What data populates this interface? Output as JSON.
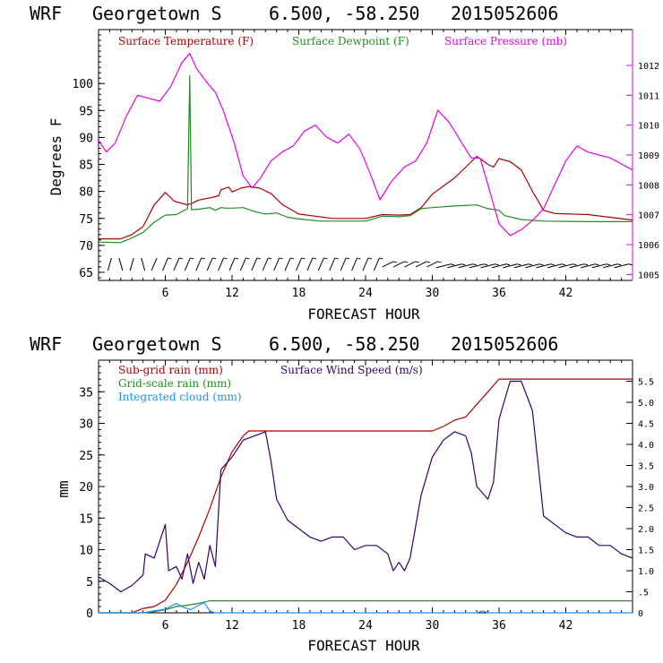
{
  "chart_data": [
    {
      "type": "line",
      "header": {
        "model": "WRF",
        "station": "Georgetown S",
        "coords": "6.500, -58.250",
        "run": "2015052606"
      },
      "xlabel": "FORECAST HOUR",
      "ylabel": "Degrees F",
      "xlim": [
        0,
        48
      ],
      "ylim": [
        63.5,
        110
      ],
      "y2lim": [
        1004.8,
        1013.2
      ],
      "xticks": [
        "6",
        "12",
        "18",
        "24",
        "30",
        "36",
        "42"
      ],
      "yticks": [
        "65",
        "70",
        "75",
        "80",
        "85",
        "90",
        "95",
        "100"
      ],
      "y2ticks": [
        "1005",
        "1006",
        "1007",
        "1008",
        "1009",
        "1010",
        "1011",
        "1012"
      ],
      "legend_placement": "top",
      "series": [
        {
          "name": "Surface Temperature (F)",
          "color": "#aa0000",
          "axis": "left",
          "points": [
            [
              0,
              71.2
            ],
            [
              2,
              71.2
            ],
            [
              3,
              72
            ],
            [
              4,
              73.5
            ],
            [
              5,
              77.5
            ],
            [
              6,
              79.8
            ],
            [
              6.8,
              78.2
            ],
            [
              7.5,
              77.8
            ],
            [
              8,
              77.5
            ],
            [
              8.4,
              77.8
            ],
            [
              9,
              78.4
            ],
            [
              10,
              78.8
            ],
            [
              10.8,
              79.2
            ],
            [
              11,
              80.3
            ],
            [
              11.7,
              80.8
            ],
            [
              12,
              79.9
            ],
            [
              12.8,
              80.6
            ],
            [
              13.5,
              80.9
            ],
            [
              14.5,
              80.6
            ],
            [
              15.5,
              79.6
            ],
            [
              16.5,
              77.6
            ],
            [
              18,
              75.8
            ],
            [
              21,
              75
            ],
            [
              24,
              75
            ],
            [
              25.5,
              75.7
            ],
            [
              27,
              75.6
            ],
            [
              28,
              75.7
            ],
            [
              29,
              77
            ],
            [
              30,
              79.5
            ],
            [
              31,
              81
            ],
            [
              32,
              82.5
            ],
            [
              33,
              84.5
            ],
            [
              34,
              86.5
            ],
            [
              35,
              85
            ],
            [
              35.5,
              84.5
            ],
            [
              36,
              86.1
            ],
            [
              37,
              85.5
            ],
            [
              38,
              84
            ],
            [
              39,
              80
            ],
            [
              40,
              76.5
            ],
            [
              41,
              75.9
            ],
            [
              44,
              75.7
            ],
            [
              48,
              74.7
            ]
          ]
        },
        {
          "name": "Surface Dewpoint (F)",
          "color": "#228b22",
          "axis": "left",
          "points": [
            [
              0,
              70.6
            ],
            [
              2,
              70.5
            ],
            [
              3,
              71.4
            ],
            [
              4,
              72.4
            ],
            [
              5,
              74.3
            ],
            [
              6,
              75.6
            ],
            [
              7,
              75.7
            ],
            [
              8,
              76.8
            ],
            [
              8.2,
              101.5
            ],
            [
              8.35,
              76.6
            ],
            [
              9,
              76.7
            ],
            [
              10,
              77
            ],
            [
              10.5,
              76.5
            ],
            [
              11,
              77
            ],
            [
              11.5,
              76.9
            ],
            [
              12,
              76.9
            ],
            [
              13,
              77
            ],
            [
              14,
              76.3
            ],
            [
              15,
              75.8
            ],
            [
              16,
              76
            ],
            [
              17,
              75.2
            ],
            [
              18,
              74.9
            ],
            [
              20,
              74.5
            ],
            [
              24,
              74.5
            ],
            [
              25.5,
              75.4
            ],
            [
              27,
              75.3
            ],
            [
              28,
              75.5
            ],
            [
              29,
              76.8
            ],
            [
              30,
              77
            ],
            [
              32,
              77.3
            ],
            [
              34,
              77.5
            ],
            [
              35,
              76.8
            ],
            [
              36,
              76.5
            ],
            [
              36.5,
              75.5
            ],
            [
              38,
              74.8
            ],
            [
              40,
              74.5
            ],
            [
              44,
              74.4
            ],
            [
              48,
              74.4
            ]
          ]
        },
        {
          "name": "Surface Pressure (mb)",
          "color": "#e600e6",
          "axis": "right",
          "points": [
            [
              0,
              1009.5
            ],
            [
              0.7,
              1009.1
            ],
            [
              1.5,
              1009.4
            ],
            [
              2.5,
              1010.3
            ],
            [
              3.5,
              1011
            ],
            [
              4.5,
              1010.9
            ],
            [
              5.5,
              1010.8
            ],
            [
              6.5,
              1011.3
            ],
            [
              7.5,
              1012.1
            ],
            [
              8.2,
              1012.4
            ],
            [
              8.8,
              1011.9
            ],
            [
              9.8,
              1011.4
            ],
            [
              10.5,
              1011.1
            ],
            [
              11.2,
              1010.5
            ],
            [
              12.2,
              1009.4
            ],
            [
              13,
              1008.3
            ],
            [
              13.8,
              1007.9
            ],
            [
              14.5,
              1008.2
            ],
            [
              15.5,
              1008.8
            ],
            [
              16.5,
              1009.1
            ],
            [
              17.5,
              1009.3
            ],
            [
              18.5,
              1009.8
            ],
            [
              19.5,
              1010
            ],
            [
              20.5,
              1009.6
            ],
            [
              21.5,
              1009.4
            ],
            [
              22.5,
              1009.7
            ],
            [
              23.5,
              1009.2
            ],
            [
              24.5,
              1008.3
            ],
            [
              25.3,
              1007.5
            ],
            [
              26.3,
              1008.1
            ],
            [
              27.5,
              1008.6
            ],
            [
              28.5,
              1008.8
            ],
            [
              29.5,
              1009.4
            ],
            [
              30.5,
              1010.5
            ],
            [
              31.5,
              1010.1
            ],
            [
              32.5,
              1009.5
            ],
            [
              33.5,
              1008.9
            ],
            [
              34.3,
              1008.9
            ],
            [
              35,
              1008
            ],
            [
              36,
              1006.7
            ],
            [
              37,
              1006.3
            ],
            [
              38,
              1006.5
            ],
            [
              39,
              1006.8
            ],
            [
              40,
              1007.2
            ],
            [
              41,
              1008
            ],
            [
              42,
              1008.8
            ],
            [
              43,
              1009.3
            ],
            [
              44,
              1009.1
            ],
            [
              45,
              1009
            ],
            [
              46,
              1008.9
            ],
            [
              47,
              1008.7
            ],
            [
              48,
              1008.5
            ]
          ]
        }
      ]
    },
    {
      "type": "line",
      "header": {
        "model": "WRF",
        "station": "Georgetown S",
        "coords": "6.500, -58.250",
        "run": "2015052606"
      },
      "xlabel": "FORECAST HOUR",
      "ylabel": "mm",
      "xlim": [
        0,
        48
      ],
      "ylim": [
        0,
        40
      ],
      "y2lim": [
        0,
        6
      ],
      "xticks": [
        "6",
        "12",
        "18",
        "24",
        "30",
        "36",
        "42"
      ],
      "yticks": [
        "0",
        "5",
        "10",
        "15",
        "20",
        "25",
        "30",
        "35"
      ],
      "y2ticks": [
        "0",
        ".5",
        "1.0",
        "1.5",
        "2.0",
        "2.5",
        "3.0",
        "3.5",
        "4.0",
        "4.5",
        "5.0",
        "5.5"
      ],
      "legend_placement": "top-left",
      "series": [
        {
          "name": "Sub-grid rain (mm)",
          "color": "#aa0000",
          "axis": "left",
          "points": [
            [
              0,
              0
            ],
            [
              3,
              0
            ],
            [
              4,
              0.7
            ],
            [
              5,
              1
            ],
            [
              6,
              2
            ],
            [
              7,
              4.5
            ],
            [
              8,
              8
            ],
            [
              9,
              12
            ],
            [
              10,
              16.5
            ],
            [
              11,
              21.5
            ],
            [
              12,
              25.5
            ],
            [
              13,
              28
            ],
            [
              13.5,
              28.8
            ],
            [
              30,
              28.8
            ],
            [
              31,
              29.5
            ],
            [
              32,
              30.5
            ],
            [
              33,
              31
            ],
            [
              34,
              33
            ],
            [
              35,
              35
            ],
            [
              36,
              37
            ],
            [
              48,
              37
            ]
          ]
        },
        {
          "name": "Grid-scale rain (mm)",
          "color": "#228b22",
          "axis": "left",
          "points": [
            [
              0,
              0
            ],
            [
              4,
              0
            ],
            [
              5,
              0.2
            ],
            [
              6,
              0.5
            ],
            [
              7,
              1
            ],
            [
              8,
              1.2
            ],
            [
              9,
              1.5
            ],
            [
              10,
              1.9
            ],
            [
              48,
              1.9
            ]
          ]
        },
        {
          "name": "Integrated cloud (mm)",
          "color": "#1e90ff",
          "axis": "left",
          "points": [
            [
              0,
              0
            ],
            [
              4,
              0
            ],
            [
              5,
              0.3
            ],
            [
              6,
              0.6
            ],
            [
              7,
              1.5
            ],
            [
              7.6,
              0.9
            ],
            [
              8.3,
              0.5
            ],
            [
              9,
              1.2
            ],
            [
              9.5,
              1.6
            ],
            [
              10,
              0.3
            ],
            [
              10.5,
              0
            ],
            [
              34,
              0
            ],
            [
              34.5,
              0.3
            ],
            [
              35,
              0
            ],
            [
              48,
              0
            ]
          ]
        },
        {
          "name": "Surface Wind Speed (m/s)",
          "color": "#330066",
          "axis": "right",
          "points": [
            [
              0,
              0.85
            ],
            [
              1,
              0.7
            ],
            [
              2,
              0.5
            ],
            [
              3,
              0.65
            ],
            [
              4,
              0.9
            ],
            [
              4.2,
              1.4
            ],
            [
              5,
              1.3
            ],
            [
              6,
              2.1
            ],
            [
              6.3,
              1.0
            ],
            [
              7,
              1.1
            ],
            [
              7.5,
              0.8
            ],
            [
              8,
              1.4
            ],
            [
              8.5,
              0.7
            ],
            [
              9,
              1.2
            ],
            [
              9.5,
              0.8
            ],
            [
              10,
              1.6
            ],
            [
              10.5,
              1.1
            ],
            [
              11,
              3.4
            ],
            [
              12,
              3.7
            ],
            [
              13,
              4.1
            ],
            [
              14,
              4.2
            ],
            [
              15,
              4.3
            ],
            [
              15.5,
              3.6
            ],
            [
              16,
              2.7
            ],
            [
              17,
              2.2
            ],
            [
              18,
              2.0
            ],
            [
              19,
              1.8
            ],
            [
              20,
              1.7
            ],
            [
              21,
              1.8
            ],
            [
              22,
              1.8
            ],
            [
              23,
              1.5
            ],
            [
              24,
              1.6
            ],
            [
              25,
              1.6
            ],
            [
              26,
              1.4
            ],
            [
              26.5,
              1.0
            ],
            [
              27,
              1.2
            ],
            [
              27.5,
              1.0
            ],
            [
              28,
              1.3
            ],
            [
              29,
              2.8
            ],
            [
              30,
              3.7
            ],
            [
              31,
              4.1
            ],
            [
              32,
              4.3
            ],
            [
              33,
              4.2
            ],
            [
              33.5,
              3.8
            ],
            [
              34,
              3.0
            ],
            [
              35,
              2.7
            ],
            [
              35.5,
              3.1
            ],
            [
              36,
              4.6
            ],
            [
              37,
              5.5
            ],
            [
              38,
              5.5
            ],
            [
              39,
              4.8
            ],
            [
              40,
              2.3
            ],
            [
              41,
              2.1
            ],
            [
              42,
              1.9
            ],
            [
              43,
              1.8
            ],
            [
              44,
              1.8
            ],
            [
              45,
              1.6
            ],
            [
              46,
              1.6
            ],
            [
              47,
              1.4
            ],
            [
              48,
              1.3
            ]
          ]
        }
      ]
    }
  ],
  "wind_barbs": {
    "color": "#000000",
    "hours": [
      1,
      2,
      3,
      4,
      5,
      6,
      7,
      8,
      9,
      10,
      11,
      12,
      13,
      14,
      15,
      16,
      17,
      18,
      19,
      20,
      21,
      22,
      23,
      24,
      25,
      26,
      27,
      28,
      29,
      30,
      31,
      32,
      33,
      34,
      35,
      36,
      37,
      38,
      39,
      40,
      41,
      42,
      43,
      44,
      45,
      46,
      47
    ]
  }
}
